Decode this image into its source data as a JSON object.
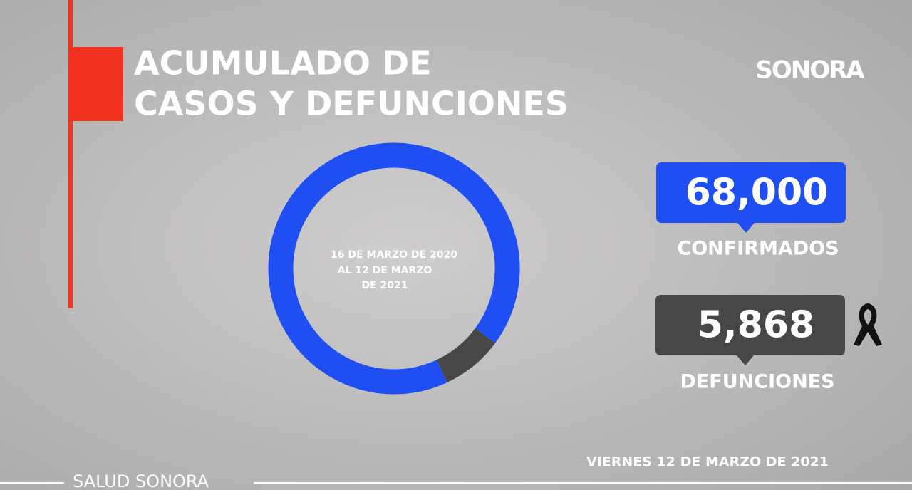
{
  "chart_data": {
    "type": "donut",
    "title": [
      "ACUMULADO DE",
      "CASOS Y DEFUNCIONES"
    ],
    "logo": "SONORA",
    "center_text": [
      "16 DE MARZO DE 2020",
      "AL 12 DE MARZO",
      "DE 2021"
    ],
    "categories": [
      "CONFIRMADOS",
      "DEFUNCIONES"
    ],
    "values": [
      68000,
      5868
    ],
    "value_labels": [
      "68,000",
      "5,868"
    ],
    "colors": [
      "#1f4ff2",
      "#474747"
    ],
    "date": "VIERNES 12 DE MARZO DE 2021",
    "footer": "SALUD SONORA"
  }
}
